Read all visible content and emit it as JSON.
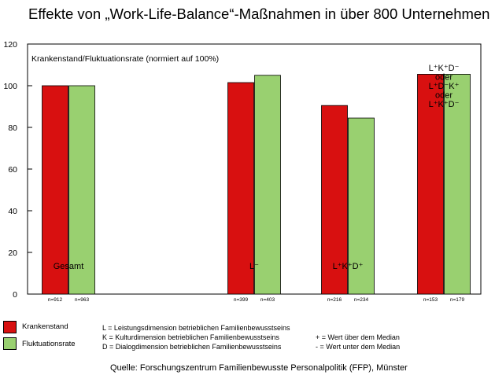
{
  "title": "Effekte von „Work-Life-Balance“-Maßnahmen in über 800 Unternehmen",
  "chart_data": {
    "type": "bar",
    "ylabel": "Krankenstand/Fluktuationsrate (normiert auf 100%)",
    "ylim": [
      0,
      120
    ],
    "yticks": [
      "0",
      "20",
      "40",
      "60",
      "80",
      "100",
      "120"
    ],
    "grid": false,
    "categories": [
      {
        "label_lines": [
          "Gesamt"
        ],
        "n": [
          "n=912",
          "n=963"
        ]
      },
      {
        "label_lines": [
          "L⁻"
        ],
        "n": [
          "n=399",
          "n=403"
        ]
      },
      {
        "label_lines": [
          "L⁺K⁺D⁺"
        ],
        "n": [
          "n=216",
          "n=234"
        ]
      },
      {
        "label_lines": [
          "L⁺K⁺D⁻",
          "oder",
          "L⁺D⁻K⁺",
          "oder",
          "L⁺K⁺D⁻"
        ],
        "n": [
          "n=153",
          "n=179"
        ]
      }
    ],
    "series": [
      {
        "name": "Krankenstand",
        "color": "#d81010",
        "values": [
          100,
          101.5,
          90.5,
          105.5
        ]
      },
      {
        "name": "Fluktuationsrate",
        "color": "#99d070",
        "values": [
          100,
          105,
          84.5,
          105.5
        ]
      }
    ]
  },
  "legend": [
    {
      "label": "Krankenstand",
      "color": "#d81010"
    },
    {
      "label": "Fluktuationsrate",
      "color": "#99d070"
    }
  ],
  "notes": {
    "dimensions": [
      "L = Leistungsdimension betrieblichen Familienbewusstseins",
      "K = Kulturdimension betrieblichen Familienbewusstseins",
      "D = Dialogdimension betrieblichen Familienbewusstseins"
    ],
    "median": [
      "+ = Wert über dem Median",
      "- = Wert unter dem Median"
    ]
  },
  "source": "Quelle: Forschungszentrum Familienbewusste Personalpolitik (FFP), Münster"
}
